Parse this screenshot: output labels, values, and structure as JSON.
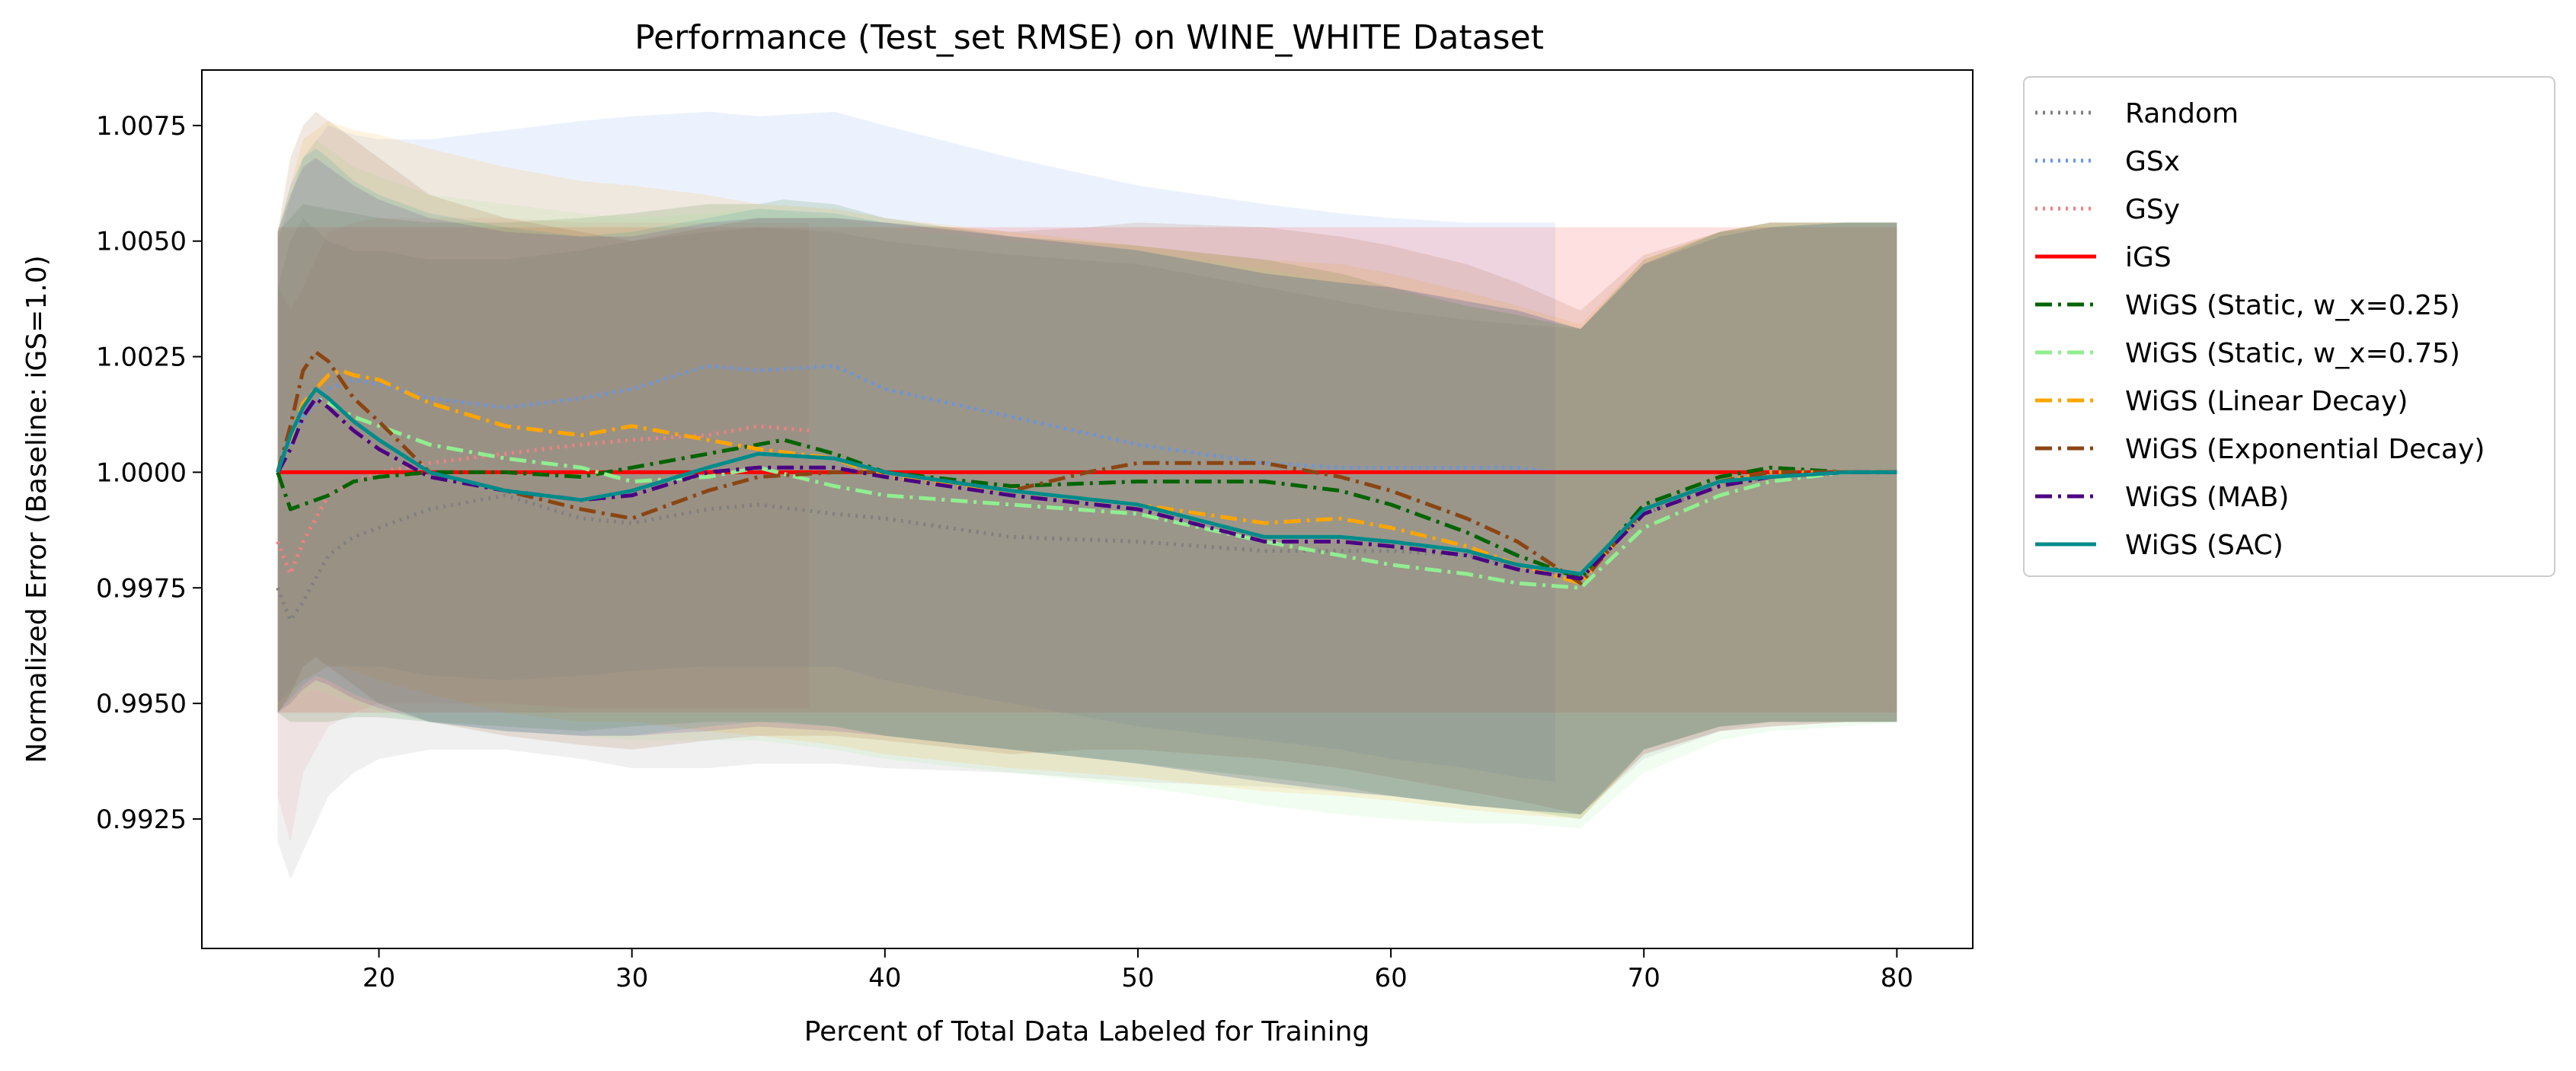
{
  "chart_data": {
    "type": "line",
    "title": "Performance (Test_set RMSE) on WINE_WHITE Dataset",
    "xlabel": "Percent of Total Data Labeled for Training",
    "ylabel": "Normalized Error (Baseline: iGS=1.0)",
    "xlim": [
      13,
      83
    ],
    "ylim": [
      0.9897,
      1.0087
    ],
    "xticks": [
      20,
      30,
      40,
      50,
      60,
      70,
      80
    ],
    "yticks": [
      0.9925,
      0.995,
      0.9975,
      1.0,
      1.0025,
      1.005,
      1.0075
    ],
    "ytick_labels": [
      "0.9925",
      "0.9950",
      "0.9975",
      "1.0000",
      "1.0025",
      "1.0050",
      "1.0075"
    ],
    "grid": false,
    "legend_position": "outside-right",
    "series": [
      {
        "name": "Random",
        "color": "#808080",
        "style": "dotted",
        "x": [
          16,
          16.5,
          17,
          18,
          19,
          20,
          22,
          25,
          28,
          30,
          33,
          35,
          38,
          40,
          45,
          50,
          55,
          60,
          63,
          65,
          67.5,
          70,
          73,
          75,
          78,
          80
        ],
        "y": [
          0.9975,
          0.9968,
          0.9972,
          0.9982,
          0.9986,
          0.9988,
          0.9992,
          0.9995,
          0.999,
          0.9989,
          0.9992,
          0.9993,
          0.9991,
          0.999,
          0.9986,
          0.9985,
          0.9983,
          0.9983,
          0.9982,
          0.998,
          0.9977,
          0.9991,
          0.9997,
          0.9999,
          1.0,
          1.0
        ],
        "band_lower": [
          0.992,
          0.9912,
          0.9918,
          0.993,
          0.9935,
          0.9938,
          0.994,
          0.994,
          0.9938,
          0.9936,
          0.9936,
          0.9937,
          0.9937,
          0.9936,
          0.9935,
          0.9933,
          0.9932,
          0.993,
          0.9928,
          0.9927,
          0.9926,
          0.9938,
          0.9944,
          0.9946,
          0.9946,
          0.9946
        ],
        "band_upper": [
          1.004,
          1.005,
          1.0055,
          1.005,
          1.0048,
          1.0048,
          1.0046,
          1.0046,
          1.0048,
          1.005,
          1.0052,
          1.0053,
          1.0052,
          1.005,
          1.0047,
          1.0045,
          1.004,
          1.0035,
          1.0033,
          1.0032,
          1.0031,
          1.0045,
          1.0052,
          1.0054,
          1.0054,
          1.0054
        ]
      },
      {
        "name": "GSx",
        "color": "#6495ED",
        "style": "dotted",
        "x": [
          16,
          17,
          18,
          19,
          20,
          22,
          25,
          28,
          30,
          33,
          35,
          38,
          40,
          45,
          50,
          55,
          58,
          60,
          63,
          65,
          66.5
        ],
        "y": [
          1.0,
          1.0012,
          1.0018,
          1.002,
          1.0019,
          1.0016,
          1.0014,
          1.0016,
          1.0018,
          1.0023,
          1.0022,
          1.0023,
          1.0018,
          1.0012,
          1.0006,
          1.0002,
          1.0001,
          1.0001,
          1.0001,
          1.0001,
          1.0
        ],
        "band_lower": [
          0.995,
          0.9955,
          0.9958,
          0.9958,
          0.9958,
          0.9956,
          0.9955,
          0.9956,
          0.9957,
          0.9958,
          0.9958,
          0.9958,
          0.9955,
          0.995,
          0.9945,
          0.9942,
          0.994,
          0.9938,
          0.9936,
          0.9934,
          0.9933
        ],
        "band_upper": [
          1.005,
          1.0068,
          1.0075,
          1.0073,
          1.0072,
          1.0072,
          1.0074,
          1.0076,
          1.0077,
          1.0078,
          1.0077,
          1.0078,
          1.0075,
          1.0068,
          1.0062,
          1.0058,
          1.0056,
          1.0055,
          1.0054,
          1.0054,
          1.0054
        ]
      },
      {
        "name": "GSy",
        "color": "#F08080",
        "style": "dotted",
        "x": [
          16,
          16.5,
          17,
          18,
          19,
          20,
          22,
          25,
          28,
          30,
          33,
          35,
          37
        ],
        "y": [
          0.9985,
          0.9978,
          0.9985,
          0.9995,
          0.9998,
          1.0,
          1.0002,
          1.0004,
          1.0006,
          1.0007,
          1.0008,
          1.001,
          1.0009
        ],
        "band_lower": [
          0.993,
          0.992,
          0.9935,
          0.9945,
          0.9948,
          0.995,
          0.995,
          0.995,
          0.9949,
          0.9949,
          0.9949,
          0.9949,
          0.9949
        ],
        "band_upper": [
          1.004,
          1.0035,
          1.004,
          1.0052,
          1.0054,
          1.0055,
          1.0055,
          1.0055,
          1.0054,
          1.0054,
          1.0054,
          1.0054,
          1.0054
        ]
      },
      {
        "name": "iGS",
        "color": "#FF0000",
        "style": "solid",
        "x": [
          16,
          80
        ],
        "y": [
          1.0,
          1.0
        ],
        "band_lower": [
          0.9948,
          0.9948
        ],
        "band_upper": [
          1.0053,
          1.0053
        ]
      },
      {
        "name": "WiGS (Static, w_x=0.25)",
        "color": "#006400",
        "style": "dashdot",
        "x": [
          16,
          16.5,
          17,
          18,
          19,
          20,
          22,
          25,
          28,
          30,
          33,
          35,
          36,
          38,
          40,
          45,
          50,
          55,
          58,
          60,
          63,
          65,
          67.5,
          70,
          73,
          75,
          78,
          80
        ],
        "y": [
          1.0,
          0.9992,
          0.9993,
          0.9995,
          0.9998,
          0.9999,
          1.0,
          1.0,
          0.9999,
          1.0001,
          1.0004,
          1.0006,
          1.0007,
          1.0004,
          1.0,
          0.9997,
          0.9998,
          0.9998,
          0.9996,
          0.9993,
          0.9987,
          0.9982,
          0.9977,
          0.9993,
          0.9999,
          1.0001,
          1.0,
          1.0
        ],
        "band_lower": [
          0.9948,
          0.9946,
          0.9946,
          0.9946,
          0.9947,
          0.9947,
          0.9946,
          0.9945,
          0.9944,
          0.9945,
          0.9946,
          0.9946,
          0.9946,
          0.9945,
          0.9943,
          0.994,
          0.9937,
          0.9934,
          0.9932,
          0.993,
          0.9928,
          0.9927,
          0.9925,
          0.994,
          0.9945,
          0.9946,
          0.9946,
          0.9946
        ],
        "band_upper": [
          1.0052,
          1.0055,
          1.0058,
          1.0057,
          1.0056,
          1.0055,
          1.0054,
          1.0054,
          1.0055,
          1.0056,
          1.0058,
          1.0058,
          1.0059,
          1.0058,
          1.0055,
          1.0051,
          1.0049,
          1.0046,
          1.0043,
          1.004,
          1.0036,
          1.0034,
          1.0031,
          1.0046,
          1.0052,
          1.0054,
          1.0054,
          1.0054
        ]
      },
      {
        "name": "WiGS (Static, w_x=0.75)",
        "color": "#90EE90",
        "style": "dashdot",
        "x": [
          16,
          17,
          17.5,
          18,
          19,
          20,
          22,
          25,
          28,
          30,
          33,
          35,
          38,
          40,
          45,
          50,
          55,
          58,
          60,
          63,
          65,
          67.5,
          70,
          73,
          75,
          78,
          80
        ],
        "y": [
          1.0,
          1.0012,
          1.0016,
          1.0015,
          1.0012,
          1.001,
          1.0006,
          1.0003,
          1.0001,
          0.9998,
          0.9999,
          1.0001,
          0.9997,
          0.9995,
          0.9993,
          0.9991,
          0.9985,
          0.9982,
          0.998,
          0.9978,
          0.9976,
          0.9975,
          0.9988,
          0.9995,
          0.9998,
          1.0,
          1.0
        ],
        "band_lower": [
          0.9948,
          0.9952,
          0.9953,
          0.9952,
          0.995,
          0.9948,
          0.9946,
          0.9944,
          0.9943,
          0.9942,
          0.9942,
          0.9942,
          0.994,
          0.9938,
          0.9935,
          0.9932,
          0.9928,
          0.9926,
          0.9925,
          0.9924,
          0.9924,
          0.9923,
          0.9935,
          0.9942,
          0.9944,
          0.9945,
          0.9946
        ],
        "band_upper": [
          1.0052,
          1.0068,
          1.0072,
          1.007,
          1.0066,
          1.0064,
          1.006,
          1.0058,
          1.0056,
          1.0055,
          1.0056,
          1.0057,
          1.0055,
          1.0053,
          1.005,
          1.0048,
          1.0044,
          1.0041,
          1.0039,
          1.0036,
          1.0034,
          1.0031,
          1.0045,
          1.0051,
          1.0053,
          1.0054,
          1.0054
        ]
      },
      {
        "name": "WiGS (Linear Decay)",
        "color": "#FFA500",
        "style": "dashdot",
        "x": [
          16,
          17,
          18,
          18.5,
          19,
          20,
          22,
          25,
          28,
          30,
          33,
          35,
          38,
          40,
          45,
          50,
          55,
          58,
          60,
          63,
          65,
          67.5,
          70,
          73,
          75,
          78,
          80
        ],
        "y": [
          1.0,
          1.0015,
          1.0021,
          1.0022,
          1.0021,
          1.002,
          1.0015,
          1.001,
          1.0008,
          1.001,
          1.0007,
          1.0005,
          1.0003,
          0.9999,
          0.9996,
          0.9993,
          0.9989,
          0.999,
          0.9988,
          0.9984,
          0.998,
          0.9976,
          0.9992,
          0.9998,
          1.0,
          1.0,
          1.0
        ],
        "band_lower": [
          0.9948,
          0.9955,
          0.9958,
          0.9958,
          0.9957,
          0.9955,
          0.9952,
          0.9948,
          0.9946,
          0.9946,
          0.9944,
          0.9943,
          0.9941,
          0.9939,
          0.9936,
          0.9934,
          0.9931,
          0.993,
          0.9929,
          0.9927,
          0.9926,
          0.9925,
          0.9939,
          0.9944,
          0.9945,
          0.9946,
          0.9946
        ],
        "band_upper": [
          1.0052,
          1.0072,
          1.0076,
          1.0075,
          1.0074,
          1.0073,
          1.007,
          1.0066,
          1.0063,
          1.0062,
          1.006,
          1.0058,
          1.0057,
          1.0055,
          1.0052,
          1.0049,
          1.0046,
          1.0045,
          1.0043,
          1.0039,
          1.0036,
          1.0032,
          1.0046,
          1.0052,
          1.0054,
          1.0054,
          1.0054
        ]
      },
      {
        "name": "WiGS (Exponential Decay)",
        "color": "#8B4513",
        "style": "dashdot",
        "x": [
          16,
          16.5,
          17,
          17.5,
          18,
          19,
          20,
          22,
          25,
          28,
          30,
          33,
          35,
          38,
          40,
          45,
          48,
          50,
          55,
          58,
          60,
          63,
          65,
          67.5,
          70,
          73,
          75,
          78,
          80
        ],
        "y": [
          1.0,
          1.001,
          1.0022,
          1.0026,
          1.0024,
          1.0016,
          1.0011,
          1.0,
          0.9996,
          0.9992,
          0.999,
          0.9996,
          0.9999,
          1.0,
          1.0,
          0.9996,
          1.0,
          1.0002,
          1.0002,
          0.9999,
          0.9996,
          0.999,
          0.9985,
          0.9976,
          0.9992,
          0.9998,
          1.0,
          1.0,
          1.0
        ],
        "band_lower": [
          0.9948,
          0.9952,
          0.9958,
          0.996,
          0.9958,
          0.9954,
          0.995,
          0.9946,
          0.9943,
          0.9941,
          0.994,
          0.9942,
          0.9943,
          0.9943,
          0.9942,
          0.9939,
          0.994,
          0.994,
          0.9938,
          0.9936,
          0.9934,
          0.9931,
          0.9929,
          0.9926,
          0.994,
          0.9945,
          0.9946,
          0.9946,
          0.9946
        ],
        "band_upper": [
          1.0052,
          1.0068,
          1.0075,
          1.0078,
          1.0076,
          1.0072,
          1.0068,
          1.006,
          1.0055,
          1.0052,
          1.005,
          1.0053,
          1.0055,
          1.0055,
          1.0054,
          1.0052,
          1.0053,
          1.0054,
          1.0053,
          1.0051,
          1.0049,
          1.0045,
          1.0041,
          1.0035,
          1.0047,
          1.0052,
          1.0054,
          1.0054,
          1.0054
        ]
      },
      {
        "name": "WiGS (MAB)",
        "color": "#4B0082",
        "style": "dashdot",
        "x": [
          16,
          16.5,
          17,
          17.5,
          18,
          19,
          20,
          22,
          25,
          28,
          30,
          33,
          35,
          38,
          40,
          45,
          50,
          55,
          58,
          60,
          63,
          65,
          67.5,
          70,
          73,
          75,
          78,
          80
        ],
        "y": [
          1.0,
          1.0005,
          1.0012,
          1.0016,
          1.0014,
          1.0009,
          1.0005,
          0.9999,
          0.9996,
          0.9994,
          0.9995,
          1.0,
          1.0001,
          1.0001,
          0.9999,
          0.9995,
          0.9992,
          0.9985,
          0.9985,
          0.9984,
          0.9982,
          0.9979,
          0.9977,
          0.9991,
          0.9997,
          0.9999,
          1.0,
          1.0
        ],
        "band_lower": [
          0.9948,
          0.995,
          0.9953,
          0.9955,
          0.9954,
          0.9951,
          0.9949,
          0.9946,
          0.9944,
          0.9943,
          0.9943,
          0.9944,
          0.9945,
          0.9944,
          0.9943,
          0.994,
          0.9937,
          0.9933,
          0.9931,
          0.993,
          0.9928,
          0.9927,
          0.9926,
          0.9939,
          0.9944,
          0.9945,
          0.9946,
          0.9946
        ],
        "band_upper": [
          1.0052,
          1.006,
          1.0066,
          1.0068,
          1.0066,
          1.0062,
          1.0059,
          1.0055,
          1.0052,
          1.0051,
          1.0051,
          1.0054,
          1.0055,
          1.0055,
          1.0054,
          1.0051,
          1.0048,
          1.0043,
          1.0041,
          1.004,
          1.0037,
          1.0035,
          1.0031,
          1.0045,
          1.0051,
          1.0053,
          1.0054,
          1.0054
        ]
      },
      {
        "name": "WiGS (SAC)",
        "color": "#008B8B",
        "style": "solid",
        "x": [
          16,
          16.5,
          17,
          17.5,
          18,
          19,
          20,
          22,
          25,
          28,
          30,
          33,
          35,
          38,
          40,
          45,
          50,
          55,
          58,
          60,
          63,
          65,
          67.5,
          70,
          73,
          75,
          78,
          80
        ],
        "y": [
          1.0,
          1.0008,
          1.0014,
          1.0018,
          1.0016,
          1.0011,
          1.0007,
          1.0,
          0.9996,
          0.9994,
          0.9996,
          1.0001,
          1.0004,
          1.0003,
          1.0,
          0.9996,
          0.9993,
          0.9986,
          0.9986,
          0.9985,
          0.9983,
          0.998,
          0.9978,
          0.9992,
          0.9998,
          0.9999,
          1.0,
          1.0
        ],
        "band_lower": [
          0.9948,
          0.9951,
          0.9954,
          0.9956,
          0.9955,
          0.9952,
          0.995,
          0.9946,
          0.9944,
          0.9943,
          0.9943,
          0.9945,
          0.9946,
          0.9945,
          0.9943,
          0.994,
          0.9937,
          0.9933,
          0.9931,
          0.993,
          0.9928,
          0.9927,
          0.9926,
          0.994,
          0.9945,
          0.9946,
          0.9946,
          0.9946
        ],
        "band_upper": [
          1.0052,
          1.0062,
          1.0068,
          1.007,
          1.0068,
          1.0063,
          1.006,
          1.0056,
          1.0053,
          1.0051,
          1.0052,
          1.0055,
          1.0057,
          1.0056,
          1.0054,
          1.0051,
          1.0048,
          1.0043,
          1.0041,
          1.004,
          1.0037,
          1.0035,
          1.0031,
          1.0045,
          1.0052,
          1.0053,
          1.0054,
          1.0054
        ]
      }
    ]
  }
}
